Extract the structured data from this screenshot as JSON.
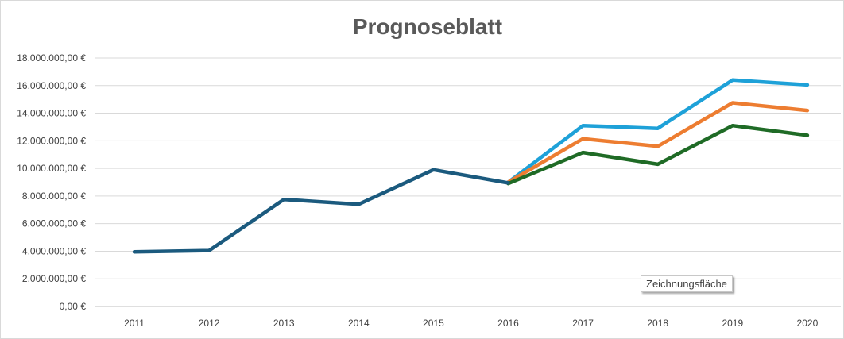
{
  "chart_data": {
    "type": "line",
    "title": "Prognoseblatt",
    "categories": [
      "2011",
      "2012",
      "2013",
      "2014",
      "2015",
      "2016",
      "2017",
      "2018",
      "2019",
      "2020"
    ],
    "ylim": [
      0,
      18000000
    ],
    "y_ticks": [
      "0,00 €",
      "2.000.000,00 €",
      "4.000.000,00 €",
      "6.000.000,00 €",
      "8.000.000,00 €",
      "10.000.000,00 €",
      "12.000.000,00 €",
      "14.000.000,00 €",
      "16.000.000,00 €",
      "18.000.000,00 €"
    ],
    "grid": true,
    "legend": "none",
    "series": [
      {
        "color": "#1ea1d8",
        "values": [
          null,
          null,
          null,
          null,
          null,
          9000000,
          13100000,
          12900000,
          16400000,
          16050000
        ]
      },
      {
        "color": "#ed7d31",
        "values": [
          null,
          null,
          null,
          null,
          null,
          9000000,
          12150000,
          11600000,
          14750000,
          14200000
        ]
      },
      {
        "color": "#1f6b26",
        "values": [
          null,
          null,
          null,
          null,
          null,
          8900000,
          11150000,
          10300000,
          13100000,
          12400000
        ]
      },
      {
        "color": "#1b5a7e",
        "values": [
          3950000,
          4050000,
          7750000,
          7400000,
          9900000,
          8950000,
          null,
          null,
          null,
          null
        ]
      }
    ]
  },
  "tooltip": {
    "label": "Zeichnungsfläche"
  }
}
